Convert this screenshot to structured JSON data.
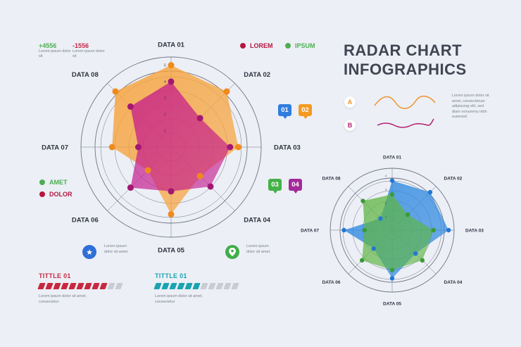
{
  "header": {
    "title_line1": "RADAR CHART",
    "title_line2": "INFOGRAPHICS"
  },
  "stats": [
    {
      "value": "+4556",
      "desc": "Lorem ipsum dolor sit",
      "color": "#4caf50"
    },
    {
      "value": "-1556",
      "desc": "Lorem ipsum dolor sit",
      "color": "#c62845"
    }
  ],
  "legend_top": [
    {
      "label": "LOREM",
      "color": "#b5173e"
    },
    {
      "label": "IPSUM",
      "color": "#4caf50"
    }
  ],
  "legend_bottom": [
    {
      "label": "AMET",
      "color": "#4caf50"
    },
    {
      "label": "DOLOR",
      "color": "#b5173e"
    }
  ],
  "badges": [
    {
      "label": "01",
      "color": "#2f7de0"
    },
    {
      "label": "02",
      "color": "#f59a20"
    },
    {
      "label": "03",
      "color": "#45b149"
    },
    {
      "label": "04",
      "color": "#a42a9b"
    }
  ],
  "ab_legend": {
    "a": {
      "letter": "A",
      "color": "#f0932b"
    },
    "b": {
      "letter": "B",
      "color": "#b01e6e"
    },
    "text": "Lorem ipsum dolor sit amet, consectetuer adipiscing elit, sed diam nonummy nibh euismod"
  },
  "icon_blocks": [
    {
      "icon": "star-icon",
      "text": "Lorem ipsum dolor sit amet.",
      "color": "#2f6fd6"
    },
    {
      "icon": "location-pin-icon",
      "text": "Lorem ipsum dolor sit amet.",
      "color": "#3fae4a"
    }
  ],
  "progress": [
    {
      "title": "TITTLE 01",
      "text": "Lorem ipsum dolor sit amet, consectetur",
      "color": "#c8283f",
      "filled": 9,
      "total": 11
    },
    {
      "title": "TITTLE 01",
      "text": "Lorem ipsum dolor sit amet, consectetur",
      "color": "#1aa3b0",
      "filled": 6,
      "total": 11
    }
  ],
  "chart_data": [
    {
      "type": "radar",
      "categories": [
        "DATA 01",
        "DATA 02",
        "DATA 03",
        "DATA 04",
        "DATA 05",
        "DATA 06",
        "DATA 07",
        "DATA 08"
      ],
      "tick_labels": [
        "1",
        "2",
        "3",
        "4",
        "5"
      ],
      "rmax": 5.5,
      "grid": true,
      "series": [
        {
          "values": [
            5.0,
            4.8,
            4.1,
            2.5,
            4.1,
            2.0,
            3.6,
            4.8
          ],
          "color": "#f7a23a",
          "marker": "#f08a1c"
        },
        {
          "values": [
            4.0,
            2.5,
            3.6,
            3.4,
            2.7,
            3.5,
            2.0,
            3.5
          ],
          "color": "#c4178d",
          "marker": "#a31774"
        }
      ]
    },
    {
      "type": "radar",
      "categories": [
        "DATA 01",
        "DATA 02",
        "DATA 03",
        "DATA 04",
        "DATA 05",
        "DATA 06",
        "DATA 07",
        "DATA 08"
      ],
      "tick_labels": [
        "1",
        "2",
        "3",
        "4"
      ],
      "rmax": 4.5,
      "grid": true,
      "series": [
        {
          "values": [
            3.6,
            3.9,
            4.1,
            2.4,
            3.5,
            1.9,
            3.5,
            1.2
          ],
          "color": "#2f89e0",
          "marker": "#2277d3"
        },
        {
          "values": [
            2.6,
            1.6,
            3.0,
            3.1,
            2.9,
            3.1,
            2.0,
            3.0
          ],
          "color": "#5db542",
          "marker": "#3a9b36"
        }
      ]
    }
  ]
}
